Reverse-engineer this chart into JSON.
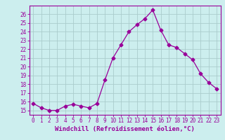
{
  "x": [
    0,
    1,
    2,
    3,
    4,
    5,
    6,
    7,
    8,
    9,
    10,
    11,
    12,
    13,
    14,
    15,
    16,
    17,
    18,
    19,
    20,
    21,
    22,
    23
  ],
  "y": [
    15.8,
    15.3,
    15.0,
    15.0,
    15.5,
    15.7,
    15.5,
    15.3,
    15.8,
    18.5,
    21.0,
    22.5,
    24.0,
    24.8,
    25.5,
    26.5,
    24.2,
    22.5,
    22.2,
    21.5,
    20.8,
    19.2,
    18.2,
    17.5
  ],
  "line_color": "#990099",
  "marker": "D",
  "marker_size": 2.5,
  "bg_color": "#cceeee",
  "grid_color": "#aacccc",
  "xlabel": "Windchill (Refroidissement éolien,°C)",
  "xlabel_color": "#990099",
  "tick_color": "#990099",
  "ylim": [
    14.5,
    27.0
  ],
  "xlim": [
    -0.5,
    23.5
  ],
  "yticks": [
    15,
    16,
    17,
    18,
    19,
    20,
    21,
    22,
    23,
    24,
    25,
    26
  ],
  "xticks": [
    0,
    1,
    2,
    3,
    4,
    5,
    6,
    7,
    8,
    9,
    10,
    11,
    12,
    13,
    14,
    15,
    16,
    17,
    18,
    19,
    20,
    21,
    22,
    23
  ],
  "xtick_labels": [
    "0",
    "1",
    "2",
    "3",
    "4",
    "5",
    "6",
    "7",
    "8",
    "9",
    "10",
    "11",
    "12",
    "13",
    "14",
    "15",
    "16",
    "17",
    "18",
    "19",
    "20",
    "21",
    "22",
    "23"
  ],
  "spine_color": "#990099",
  "font_size_xlabel": 6.5,
  "font_size_ticks": 5.5
}
